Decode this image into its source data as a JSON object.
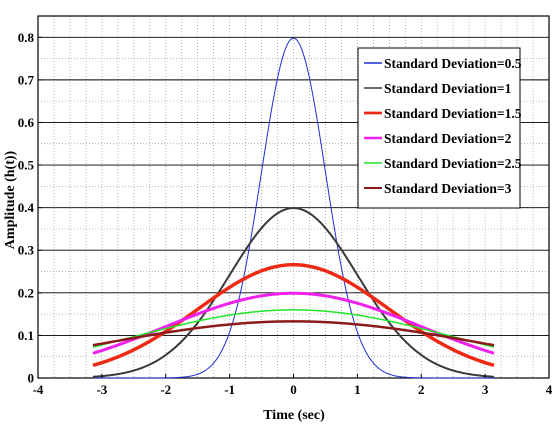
{
  "chart_data": {
    "type": "line",
    "xlabel": "Time (sec)",
    "ylabel": "Amplitude (h(t))",
    "xlim": [
      -4,
      4
    ],
    "ylim": [
      0,
      0.85
    ],
    "x_ticks": [
      -4,
      -3,
      -2,
      -1,
      0,
      1,
      2,
      3,
      4
    ],
    "y_ticks": [
      0,
      0.1,
      0.2,
      0.3,
      0.4,
      0.5,
      0.6,
      0.7,
      0.8
    ],
    "x_tick_labels": [
      "-4",
      "-3",
      "-2",
      "-1",
      "0",
      "1",
      "2",
      "3",
      "4"
    ],
    "y_tick_labels": [
      "0",
      "0.1",
      "0.2",
      "0.3",
      "0.4",
      "0.5",
      "0.6",
      "0.7",
      "0.8"
    ],
    "grid": true,
    "legend_position": "top-right",
    "x_range_data": [
      -3.14,
      3.14
    ],
    "series": [
      {
        "name": "Standard Deviation=0.5",
        "sigma": 0.5,
        "color": "#1c2fd6",
        "line_width": 1,
        "peak": 0.798
      },
      {
        "name": "Standard Deviation=1",
        "sigma": 1,
        "color": "#3a3a3a",
        "line_width": 2,
        "peak": 0.399
      },
      {
        "name": "Standard Deviation=1.5",
        "sigma": 1.5,
        "color": "#ee2a15",
        "line_width": 3.5,
        "peak": 0.266
      },
      {
        "name": "Standard Deviation=2",
        "sigma": 2,
        "color": "#f020ee",
        "line_width": 3,
        "peak": 0.199
      },
      {
        "name": "Standard Deviation=2.5",
        "sigma": 2.5,
        "color": "#22e62a",
        "line_width": 1.5,
        "peak": 0.16
      },
      {
        "name": "Standard Deviation=3",
        "sigma": 3,
        "color": "#8b1a1a",
        "line_width": 2.5,
        "peak": 0.133
      }
    ]
  }
}
